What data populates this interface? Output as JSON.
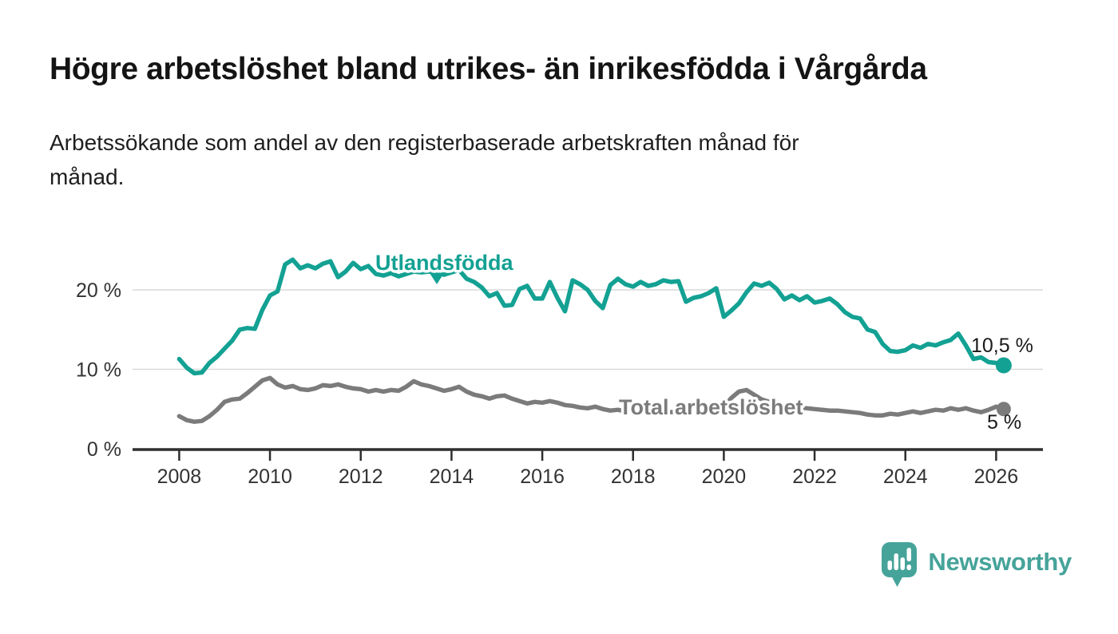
{
  "title": "Högre arbetslöshet bland utrikes- än inrikesfödda i Vårgårda",
  "subtitle": {
    "lines": [
      "Arbetssökande som andel av den registerbaserade arbetskraften månad för",
      "månad."
    ]
  },
  "branding": {
    "name": "Newsworthy",
    "icon": "newsworthy-speech-bubble-bar-chart-icon",
    "color": "#46a39a"
  },
  "colors": {
    "background": "#ffffff",
    "accent_teal": "#13a193",
    "series_gray": "#7b7b7b",
    "gridline": "#d9d9d9",
    "axis": "#2e2e2e",
    "tick_text": "#333333",
    "annotation_text": "#1a1a1a"
  },
  "chart_data": {
    "type": "line",
    "title": "Högre arbetslöshet bland utrikes- än inrikesfödda i Vårgårda",
    "subtitle": "Arbetssökande som andel av den registerbaserade arbetskraften månad för månad.",
    "xlabel": "",
    "ylabel": "",
    "grid": "horizontal",
    "xlim": [
      2007,
      2027
    ],
    "ylim": [
      0,
      26
    ],
    "x_start": 2008.0,
    "x_step_years": 0.166667,
    "x_ticks": [
      2008,
      2010,
      2012,
      2014,
      2016,
      2018,
      2020,
      2022,
      2024,
      2026
    ],
    "y_ticks": [
      {
        "value": 0,
        "label": "0 %"
      },
      {
        "value": 10,
        "label": "10 %"
      },
      {
        "value": 20,
        "label": "20 %"
      }
    ],
    "series": [
      {
        "name": "Utlandsfödda",
        "color": "#13a193",
        "marker": "down-triangle",
        "end_label": "10,5 %",
        "end_value": 10.5,
        "values": [
          11.3,
          10.2,
          9.5,
          9.6,
          10.8,
          11.6,
          12.6,
          13.6,
          15.0,
          15.2,
          15.1,
          17.5,
          19.3,
          19.8,
          23.2,
          23.8,
          22.7,
          23.1,
          22.7,
          23.3,
          23.6,
          21.6,
          22.3,
          23.4,
          22.6,
          23.0,
          22.0,
          21.8,
          22.1,
          21.7,
          22.0,
          22.3,
          22.2,
          22.3,
          22.2,
          21.9,
          22.2,
          22.5,
          21.4,
          21.0,
          20.3,
          19.2,
          19.6,
          18.0,
          18.1,
          20.1,
          20.5,
          18.9,
          18.9,
          21.0,
          19.0,
          17.3,
          21.2,
          20.7,
          20.0,
          18.6,
          17.7,
          20.6,
          21.4,
          20.7,
          20.4,
          21.0,
          20.5,
          20.7,
          21.2,
          21.0,
          21.1,
          18.5,
          19.0,
          19.2,
          19.6,
          20.2,
          16.6,
          17.4,
          18.3,
          19.7,
          20.8,
          20.5,
          20.9,
          20.1,
          18.8,
          19.3,
          18.7,
          19.2,
          18.4,
          18.6,
          18.9,
          18.2,
          17.2,
          16.6,
          16.4,
          15.0,
          14.7,
          13.2,
          12.3,
          12.2,
          12.4,
          13.0,
          12.7,
          13.2,
          13.0,
          13.4,
          13.7,
          14.5,
          13.0,
          11.3,
          11.5,
          10.9,
          10.8,
          10.5
        ]
      },
      {
        "name": "Total arbetslöshet",
        "color": "#7b7b7b",
        "marker": "none",
        "end_label": "5 %",
        "end_value": 5,
        "values": [
          4.1,
          3.6,
          3.4,
          3.5,
          4.1,
          4.9,
          5.9,
          6.2,
          6.3,
          7.0,
          7.8,
          8.6,
          8.9,
          8.1,
          7.7,
          7.9,
          7.5,
          7.4,
          7.6,
          8.0,
          7.9,
          8.1,
          7.8,
          7.6,
          7.5,
          7.2,
          7.4,
          7.2,
          7.4,
          7.3,
          7.8,
          8.5,
          8.1,
          7.9,
          7.6,
          7.3,
          7.5,
          7.8,
          7.2,
          6.8,
          6.6,
          6.3,
          6.6,
          6.7,
          6.3,
          6.0,
          5.7,
          5.9,
          5.8,
          6.0,
          5.8,
          5.5,
          5.4,
          5.2,
          5.1,
          5.3,
          5.0,
          4.8,
          4.9,
          4.7,
          4.8,
          4.9,
          4.7,
          4.6,
          4.7,
          4.6,
          4.7,
          4.6,
          4.7,
          4.6,
          4.7,
          4.9,
          5.3,
          6.4,
          7.2,
          7.4,
          6.8,
          6.2,
          5.9,
          5.7,
          5.5,
          5.3,
          5.2,
          5.1,
          5.0,
          4.9,
          4.8,
          4.8,
          4.7,
          4.6,
          4.5,
          4.3,
          4.2,
          4.2,
          4.4,
          4.3,
          4.5,
          4.7,
          4.5,
          4.7,
          4.9,
          4.8,
          5.1,
          4.9,
          5.1,
          4.8,
          4.6,
          4.9,
          5.3,
          5.0
        ]
      }
    ]
  }
}
